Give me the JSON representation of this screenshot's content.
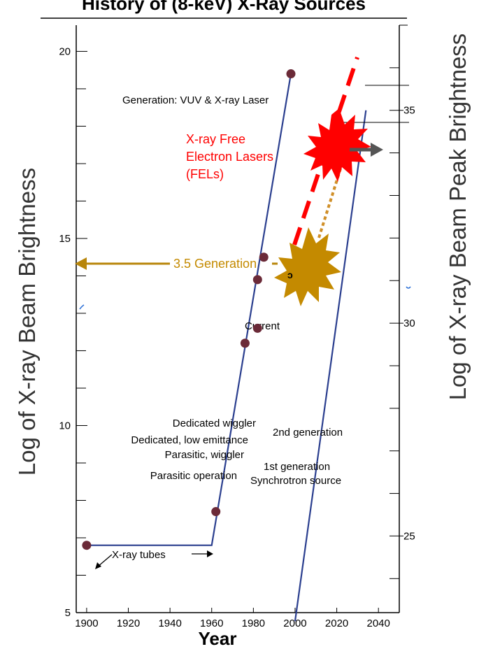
{
  "chart_data": {
    "type": "line",
    "title": "History of (8-keV) X-Ray Sources",
    "xlabel": "Year",
    "ylabel_left": "Log of X-ray Beam Brightness",
    "ylabel_right": "Log of X-ray Beam Peak Brightness",
    "xlim": [
      1895,
      2050
    ],
    "xticks": [
      1900,
      1920,
      1940,
      1960,
      1980,
      2000,
      2020,
      2040
    ],
    "ylim_left": [
      5,
      20.7
    ],
    "yticks_left": [
      5,
      10,
      15,
      20
    ],
    "ylim_right": [
      23.2,
      37
    ],
    "yticks_right": [
      25,
      30,
      35
    ],
    "brightness_line": [
      [
        1900,
        6.8
      ],
      [
        1960,
        6.8
      ],
      [
        1998,
        19.4
      ]
    ],
    "peak_brightness_line": [
      [
        2000,
        23.0
      ],
      [
        2034,
        35.0
      ]
    ],
    "points": [
      {
        "x": 1900,
        "y": 6.8
      },
      {
        "x": 1962,
        "y": 7.7
      },
      {
        "x": 1976,
        "y": 12.2
      },
      {
        "x": 1982,
        "y": 12.6
      },
      {
        "x": 1982,
        "y": 13.9
      },
      {
        "x": 1985,
        "y": 14.5
      },
      {
        "x": 1998,
        "y": 19.4
      }
    ],
    "annotations": {
      "xray_tubes": "X-ray tubes",
      "parasitic_operation": "Parasitic operation",
      "parasitic_wiggler": "Parasitic, wiggler",
      "dedicated_low_emittance": "Dedicated, low emittance",
      "dedicated_wiggler": "Dedicated wiggler",
      "second_generation": "2nd generation",
      "first_generation": "1st generation",
      "synchrotron_source": "Synchrotron source",
      "current": "Current",
      "generation_label": "Generation: VUV & X-ray Laser",
      "three_five_generation": "3.5 Generation",
      "fel_line1": "X-ray Free",
      "fel_line2": "Electron Lasers",
      "fel_line3": "(FELs)"
    },
    "colors": {
      "line": "#2b3f8f",
      "point": "#6b2a38",
      "fel": "#ff0000",
      "gen35": "#c48a00",
      "gen35_arrow": "#b8860b",
      "dark_arrow": "#555555",
      "axis": "#000000"
    }
  }
}
